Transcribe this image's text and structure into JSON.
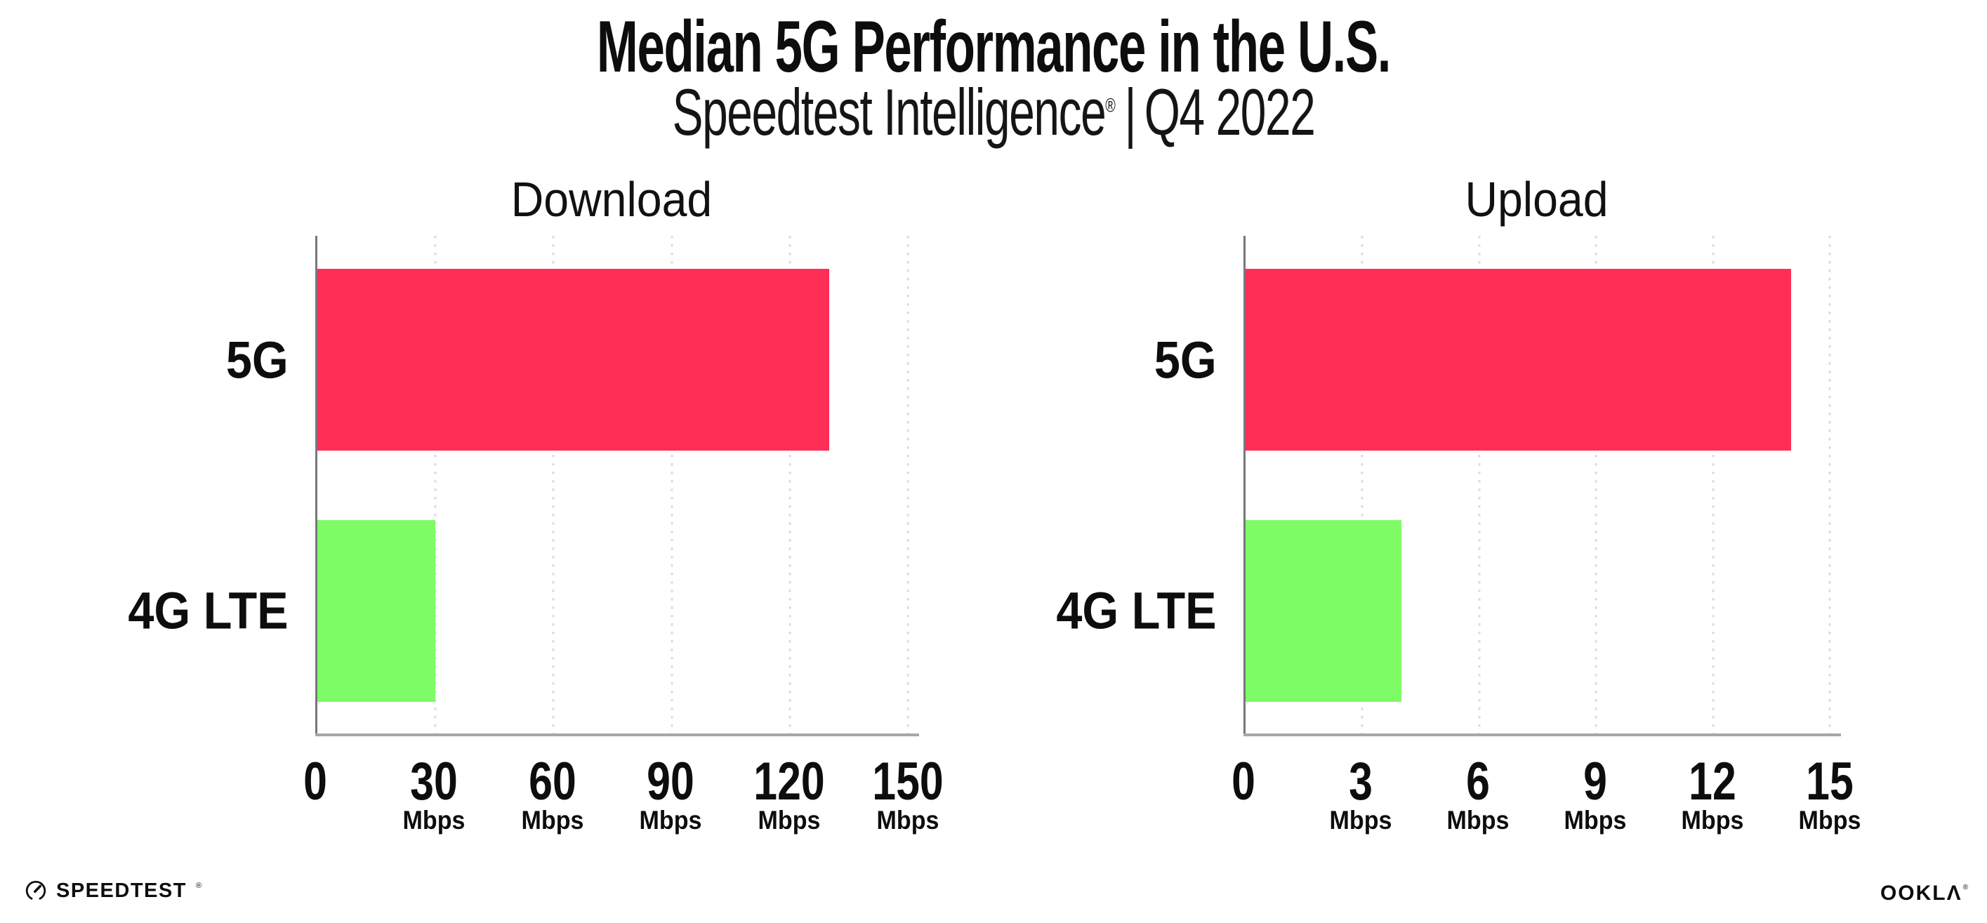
{
  "title": "Median 5G Performance in the U.S.",
  "subtitle": {
    "brand": "Speedtest Intelligence",
    "registered_mark": "®",
    "separator": "|",
    "period": "Q4 2022"
  },
  "footer": {
    "speedtest_logo_text": "SPEEDTEST",
    "speedtest_registered_mark": "®",
    "ookla_logo_text": "OOKLΛ",
    "ookla_registered_mark": "®"
  },
  "colors": {
    "bar_5g": "#FF2E56",
    "bar_4g_lte": "#7DFC66",
    "gridline": "#DBDBE1",
    "x_axis_line": "#A6A6AC",
    "y_axis_line": "#77777D",
    "text": "#0D0D0D"
  },
  "chart_data": [
    {
      "type": "bar",
      "orientation": "horizontal",
      "title": "Download",
      "categories": [
        "5G",
        "4G LTE"
      ],
      "values": [
        130,
        30
      ],
      "value_unit": "Mbps",
      "xlim": [
        0,
        150
      ],
      "xticks": [
        0,
        30,
        60,
        90,
        120,
        150
      ],
      "xtick_unit_label": "Mbps",
      "bar_colors": [
        "#FF2E56",
        "#7DFC66"
      ],
      "grid": "vertical-dotted",
      "legend": "none"
    },
    {
      "type": "bar",
      "orientation": "horizontal",
      "title": "Upload",
      "categories": [
        "5G",
        "4G LTE"
      ],
      "values": [
        14,
        4
      ],
      "value_unit": "Mbps",
      "xlim": [
        0,
        15
      ],
      "xticks": [
        0,
        3,
        6,
        9,
        12,
        15
      ],
      "xtick_unit_label": "Mbps",
      "bar_colors": [
        "#FF2E56",
        "#7DFC66"
      ],
      "grid": "vertical-dotted",
      "legend": "none"
    }
  ]
}
